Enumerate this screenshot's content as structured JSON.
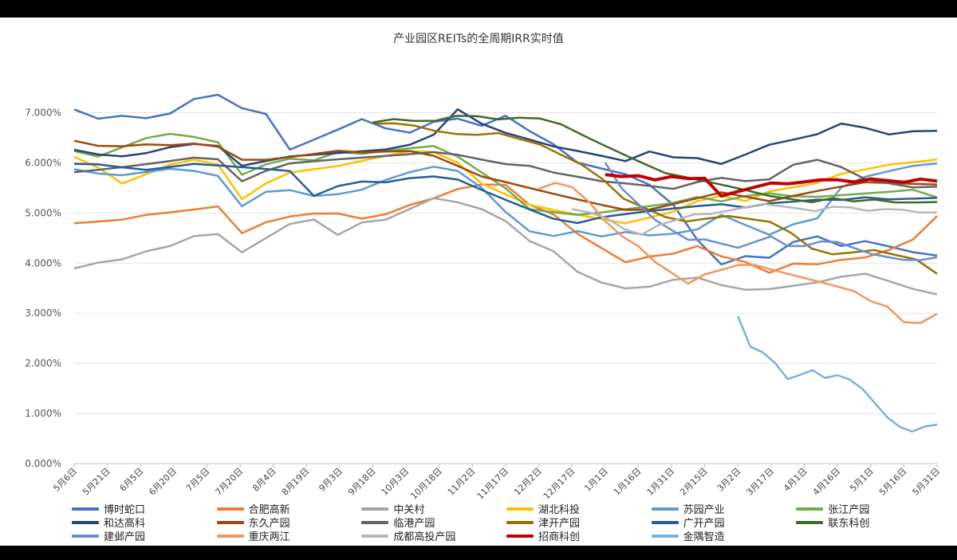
{
  "chart_data": {
    "type": "line",
    "title": "产业园区REITs的全周期IRR实时值",
    "xlabel": "",
    "ylabel": "",
    "ylim": [
      0,
      7.5
    ],
    "yticks": [
      "0.000%",
      "1.000%",
      "2.000%",
      "3.000%",
      "4.000%",
      "5.000%",
      "6.000%",
      "7.000%"
    ],
    "xticks": [
      "5月6日",
      "5月21日",
      "6月5日",
      "6月20日",
      "7月5日",
      "7月20日",
      "8月4日",
      "8月19日",
      "9月3日",
      "9月18日",
      "10月3日",
      "10月18日",
      "11月2日",
      "11月17日",
      "12月2日",
      "12月17日",
      "1月1日",
      "1月16日",
      "1月31日",
      "2月15日",
      "3月2日",
      "3月17日",
      "4月1日",
      "4月16日",
      "5月1日",
      "5月16日",
      "5月31日"
    ],
    "grid": true,
    "legend_position": "bottom",
    "series": [
      {
        "name": "博时蛇口",
        "color": "#4472C4",
        "start": 0,
        "values": [
          7.05,
          6.85,
          6.9,
          6.85,
          6.95,
          7.25,
          7.35,
          7.1,
          7.0,
          6.3,
          6.5,
          6.7,
          6.9,
          6.7,
          6.6,
          6.8,
          6.85,
          6.7,
          6.9,
          6.6,
          6.35,
          6.0,
          5.9,
          5.8,
          5.6,
          5.2,
          4.5,
          4.0,
          4.15,
          4.1,
          4.4,
          4.5,
          4.3,
          4.4,
          4.3,
          4.2,
          4.15
        ]
      },
      {
        "name": "合肥高新",
        "color": "#ED7D31",
        "start": 0,
        "values": [
          4.8,
          4.85,
          4.9,
          5.0,
          5.05,
          5.1,
          5.15,
          4.6,
          4.8,
          4.9,
          4.95,
          4.95,
          4.85,
          4.95,
          5.15,
          5.3,
          5.5,
          5.6,
          5.6,
          5.2,
          5.0,
          4.6,
          4.3,
          4.0,
          4.1,
          4.15,
          4.3,
          4.1,
          4.0,
          3.8,
          4.0,
          4.0,
          4.1,
          4.15,
          4.3,
          4.5,
          4.95
        ]
      },
      {
        "name": "中关村",
        "color": "#A5A5A5",
        "start": 0,
        "values": [
          3.9,
          4.0,
          4.05,
          4.2,
          4.3,
          4.5,
          4.55,
          4.2,
          4.5,
          4.8,
          4.9,
          4.6,
          4.85,
          4.9,
          5.1,
          5.3,
          5.2,
          5.05,
          4.8,
          4.4,
          4.2,
          3.8,
          3.6,
          3.5,
          3.55,
          3.7,
          3.75,
          3.6,
          3.5,
          3.5,
          3.55,
          3.6,
          3.7,
          3.75,
          3.6,
          3.45,
          3.35
        ]
      },
      {
        "name": "湖北科投",
        "color": "#FFC000",
        "start": 0,
        "values": [
          6.1,
          5.9,
          5.6,
          5.8,
          6.0,
          6.1,
          6.0,
          5.3,
          5.6,
          5.8,
          5.85,
          5.9,
          6.0,
          6.1,
          6.2,
          6.2,
          6.0,
          5.6,
          5.4,
          5.2,
          5.1,
          5.0,
          4.9,
          4.8,
          4.9,
          5.0,
          5.2,
          5.3,
          5.2,
          5.4,
          5.5,
          5.6,
          5.8,
          5.9,
          6.0,
          6.05,
          6.1
        ]
      },
      {
        "name": "苏园产业",
        "color": "#5B9BD5",
        "start": 0,
        "values": [
          5.9,
          5.8,
          5.75,
          5.8,
          5.85,
          5.8,
          5.7,
          5.1,
          5.4,
          5.45,
          5.35,
          5.4,
          5.5,
          5.7,
          5.85,
          5.95,
          5.85,
          5.5,
          5.0,
          4.6,
          4.5,
          4.6,
          4.5,
          4.6,
          4.55,
          4.6,
          4.7,
          5.0,
          4.8,
          4.6,
          4.8,
          4.9,
          5.5,
          5.7,
          5.8,
          5.9,
          5.95
        ]
      },
      {
        "name": "张江产园",
        "color": "#70AD47",
        "start": 0,
        "values": [
          6.2,
          6.1,
          6.3,
          6.5,
          6.6,
          6.55,
          6.45,
          5.8,
          6.0,
          6.1,
          6.05,
          6.2,
          6.15,
          6.2,
          6.25,
          6.3,
          6.1,
          5.8,
          5.5,
          5.1,
          5.05,
          5.0,
          5.05,
          5.1,
          5.15,
          5.2,
          5.3,
          5.2,
          5.3,
          5.35,
          5.3,
          5.3,
          5.35,
          5.4,
          5.45,
          5.5,
          5.35
        ]
      },
      {
        "name": "和达高科",
        "color": "#264478",
        "start": 0,
        "values": [
          6.3,
          6.2,
          6.15,
          6.2,
          6.3,
          6.35,
          6.3,
          5.9,
          6.0,
          6.1,
          6.15,
          6.2,
          6.25,
          6.3,
          6.4,
          6.6,
          7.1,
          6.8,
          6.6,
          6.45,
          6.3,
          6.2,
          6.1,
          6.0,
          6.2,
          6.1,
          6.1,
          6.0,
          6.2,
          6.4,
          6.5,
          6.6,
          6.8,
          6.7,
          6.55,
          6.6,
          6.6
        ]
      },
      {
        "name": "东久产园",
        "color": "#9E480E",
        "start": 0,
        "values": [
          6.4,
          6.3,
          6.3,
          6.35,
          6.35,
          6.4,
          6.35,
          6.1,
          6.1,
          6.15,
          6.2,
          6.25,
          6.2,
          6.2,
          6.2,
          6.1,
          5.9,
          5.7,
          5.6,
          5.5,
          5.4,
          5.3,
          5.2,
          5.1,
          5.1,
          5.2,
          5.3,
          5.4,
          5.3,
          5.2,
          5.3,
          5.4,
          5.5,
          5.6,
          5.6,
          5.6,
          5.6
        ]
      },
      {
        "name": "临港产园",
        "color": "#636363",
        "start": 0,
        "values": [
          5.85,
          5.9,
          5.95,
          6.0,
          6.05,
          6.1,
          6.05,
          5.6,
          5.8,
          5.95,
          6.0,
          6.05,
          6.1,
          6.15,
          6.2,
          6.25,
          6.2,
          6.1,
          6.0,
          5.95,
          5.8,
          5.7,
          5.6,
          5.55,
          5.5,
          5.45,
          5.6,
          5.7,
          5.65,
          5.7,
          6.0,
          6.1,
          5.95,
          5.7,
          5.6,
          5.5,
          5.5
        ]
      },
      {
        "name": "津开产园",
        "color": "#997300",
        "start": 9,
        "values": [
          6.75,
          6.75,
          6.7,
          6.6,
          6.55,
          6.55,
          6.6,
          6.5,
          6.4,
          6.2,
          6.0,
          5.7,
          5.3,
          5.1,
          4.9,
          4.8,
          4.85,
          4.9,
          4.85,
          4.8,
          4.6,
          4.3,
          4.2,
          4.25,
          4.3,
          4.2,
          4.1,
          3.8
        ]
      },
      {
        "name": "广开产园",
        "color": "#255E91",
        "start": 0,
        "values": [
          6.0,
          6.0,
          5.95,
          5.9,
          5.95,
          6.0,
          5.95,
          5.9,
          5.85,
          5.8,
          5.3,
          5.5,
          5.6,
          5.6,
          5.7,
          5.75,
          5.7,
          5.5,
          5.3,
          5.1,
          4.9,
          4.8,
          4.9,
          4.95,
          5.0,
          5.05,
          5.1,
          5.15,
          5.1,
          5.2,
          5.25,
          5.3,
          5.3,
          5.35,
          5.3,
          5.3,
          5.3
        ]
      },
      {
        "name": "联东科创",
        "color": "#43682B",
        "start": 9,
        "values": [
          6.8,
          6.85,
          6.8,
          6.8,
          6.9,
          6.9,
          6.85,
          6.9,
          6.9,
          6.8,
          6.6,
          6.4,
          6.2,
          6.0,
          5.8,
          5.7,
          5.6,
          5.5,
          5.4,
          5.3,
          5.25,
          5.2,
          5.3,
          5.25,
          5.3,
          5.25,
          5.25,
          5.25
        ]
      },
      {
        "name": "建邺产园",
        "color": "#698ED0",
        "start": 16,
        "values": [
          6.0,
          5.5,
          5.2,
          4.9,
          4.7,
          4.5,
          4.5,
          4.4,
          4.3,
          4.4,
          4.5,
          4.3,
          4.3,
          4.4,
          4.4,
          4.3,
          4.2,
          4.15,
          4.1,
          4.1,
          4.15
        ]
      },
      {
        "name": "重庆两江",
        "color": "#F1975A",
        "start": 14,
        "values": [
          5.5,
          5.6,
          5.5,
          5.2,
          4.8,
          4.5,
          4.3,
          4.0,
          3.8,
          3.6,
          3.8,
          3.9,
          4.0,
          4.0,
          3.9,
          3.8,
          3.7,
          3.6,
          3.5,
          3.4,
          3.2,
          3.1,
          2.8,
          2.8,
          3.0
        ]
      },
      {
        "name": "成都高投产园",
        "color": "#B7B7B7",
        "start": 15,
        "values": [
          5.05,
          5.0,
          4.9,
          4.7,
          4.6,
          4.8,
          4.9,
          5.0,
          5.0,
          5.05,
          5.1,
          5.15,
          5.1,
          5.05,
          5.0,
          5.1,
          5.1,
          5.05,
          5.1,
          5.1,
          5.05,
          5.05
        ]
      },
      {
        "name": "招商科创",
        "color": "#C00000",
        "start": 16,
        "values": [
          5.8,
          5.75,
          5.75,
          5.65,
          5.7,
          5.65,
          5.65,
          5.3,
          5.4,
          5.5,
          5.6,
          5.6,
          5.65,
          5.7,
          5.7,
          5.65,
          5.7,
          5.65,
          5.6,
          5.65,
          5.6
        ]
      },
      {
        "name": "金隅智造",
        "color": "#7CAFDD",
        "start": 20,
        "values": [
          2.9,
          2.3,
          2.2,
          2.0,
          1.7,
          1.8,
          1.9,
          1.75,
          1.8,
          1.7,
          1.5,
          1.2,
          0.9,
          0.7,
          0.6,
          0.7,
          0.75
        ]
      }
    ]
  }
}
